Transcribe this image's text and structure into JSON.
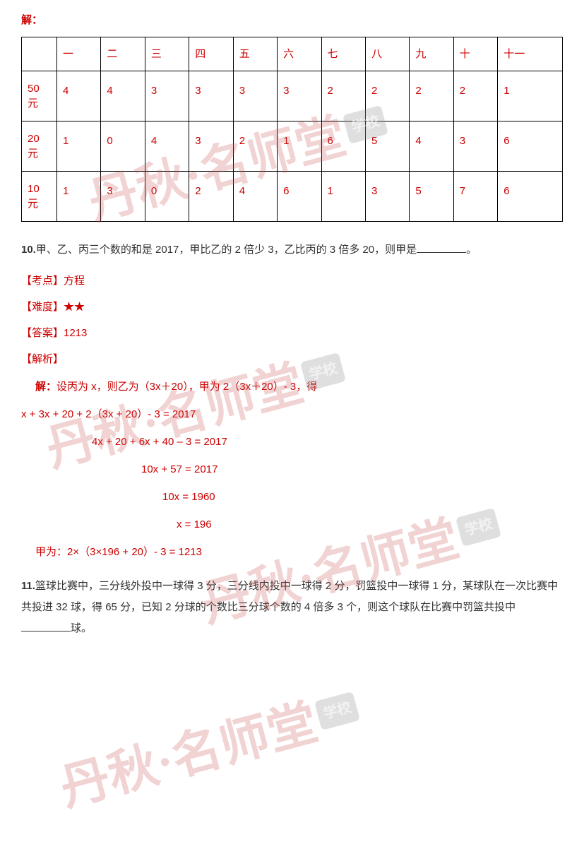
{
  "watermark": {
    "text": "丹秋·名师堂",
    "badge": "学校"
  },
  "table": {
    "solution_label": "解：",
    "headers": [
      "",
      "一",
      "二",
      "三",
      "四",
      "五",
      "六",
      "七",
      "八",
      "九",
      "十",
      "十一"
    ],
    "rows": [
      {
        "label_top": "50",
        "label_bottom": "元",
        "cells": [
          "4",
          "4",
          "3",
          "3",
          "3",
          "3",
          "2",
          "2",
          "2",
          "2",
          "1"
        ]
      },
      {
        "label_top": "20",
        "label_bottom": "元",
        "cells": [
          "1",
          "0",
          "4",
          "3",
          "2",
          "1",
          "6",
          "5",
          "4",
          "3",
          "6"
        ]
      },
      {
        "label_top": "10",
        "label_bottom": "元",
        "cells": [
          "1",
          "3",
          "0",
          "2",
          "4",
          "6",
          "1",
          "3",
          "5",
          "7",
          "6"
        ]
      }
    ]
  },
  "q10": {
    "number": "10.",
    "text": "甲、乙、丙三个数的和是 2017，甲比乙的 2 倍少 3，乙比丙的 3 倍多 20，则甲是",
    "tail": "。",
    "kaodian_label": "【考点】",
    "kaodian": "方程",
    "nandu_label": "【难度】",
    "nandu": "★★",
    "daan_label": "【答案】",
    "daan": "1213",
    "jiexi_label": "【解析】",
    "solution_label": "解：",
    "solution_intro": "设丙为 x，则乙为（3x＋20），甲为 2（3x＋20）- 3，得",
    "steps": [
      "x + 3x + 20 + 2（3x + 20）- 3 = 2017",
      "4x + 20 + 6x + 40 – 3 = 2017",
      "10x + 57 = 2017",
      "10x = 1960",
      "x = 196"
    ],
    "final": "甲为：2×（3×196 + 20）- 3 = 1213"
  },
  "q11": {
    "number": "11.",
    "text_part1": "篮球比赛中，三分线外投中一球得 3 分，三分线内投中一球得 2 分，罚篮投中一球得 1 分，某球队在一次比赛中共投进 32 球，得 65 分，已知 2 分球的个数比三分球个数的 4 倍多 3 个，则这个球队在比赛中罚篮共投中",
    "text_part2": "球。"
  }
}
